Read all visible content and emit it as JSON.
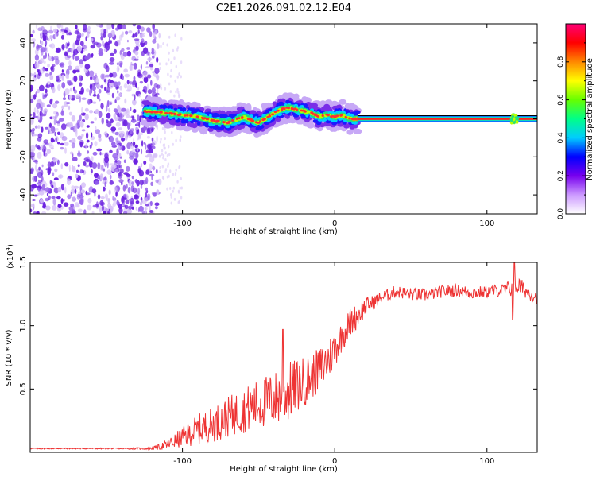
{
  "title": "C2E1.2026.091.02.12.E04",
  "chart_data": [
    {
      "type": "heatmap",
      "name": "spectrogram",
      "xlabel": "Height of straight line (km)",
      "ylabel": "Frequency (Hz)",
      "xlim": [
        -200,
        133
      ],
      "ylim": [
        -50,
        50
      ],
      "x_ticks": [
        -100,
        0,
        100
      ],
      "x_tick_labels": [
        "-100",
        "0",
        "100"
      ],
      "y_ticks": [
        -40,
        -20,
        0,
        20,
        40
      ],
      "y_tick_labels": [
        "-40",
        "-20",
        "0",
        "20",
        "40"
      ],
      "noise_region_x": [
        -200,
        -115
      ],
      "signal_trace": {
        "x": [
          -125,
          -110,
          -100,
          -90,
          -80,
          -70,
          -60,
          -50,
          -40,
          -35,
          -30,
          -25,
          -20,
          -15,
          -10,
          -5,
          0,
          5,
          10,
          15,
          133
        ],
        "freq": [
          4,
          3,
          2,
          1,
          -1,
          -2,
          1,
          -2,
          3,
          5,
          6,
          5,
          4,
          3,
          1,
          2,
          1,
          2,
          0,
          0,
          0
        ]
      },
      "line_x": [
        -200,
        133
      ],
      "line_freq": 0
    },
    {
      "type": "line",
      "name": "snr",
      "xlabel": "Height of straight line (km)",
      "ylabel": "SNR (10 * v/v)",
      "multiplier_label": "(x10",
      "multiplier_exp": "4",
      "xlim": [
        -200,
        133
      ],
      "ylim": [
        0,
        1.5
      ],
      "x_ticks": [
        -100,
        0,
        100
      ],
      "x_tick_labels": [
        "-100",
        "0",
        "100"
      ],
      "y_ticks": [
        0.5,
        1.0,
        1.5
      ],
      "y_tick_labels": [
        "0.5",
        "1.0",
        "1.5"
      ],
      "color": "#ee3333",
      "x": [
        -200,
        -180,
        -160,
        -140,
        -120,
        -110,
        -100,
        -90,
        -80,
        -70,
        -60,
        -50,
        -40,
        -35,
        -30,
        -25,
        -20,
        -15,
        -10,
        -5,
        0,
        5,
        10,
        15,
        20,
        25,
        30,
        40,
        50,
        60,
        70,
        80,
        90,
        100,
        110,
        118,
        120,
        125,
        133
      ],
      "baseline": [
        0.03,
        0.03,
        0.03,
        0.03,
        0.03,
        0.06,
        0.12,
        0.18,
        0.22,
        0.28,
        0.33,
        0.38,
        0.42,
        0.45,
        0.48,
        0.52,
        0.56,
        0.6,
        0.65,
        0.72,
        0.82,
        0.92,
        1.02,
        1.08,
        1.15,
        1.18,
        1.22,
        1.27,
        1.25,
        1.24,
        1.27,
        1.28,
        1.26,
        1.27,
        1.28,
        1.3,
        1.32,
        1.28,
        1.22
      ],
      "noise": [
        0.005,
        0.005,
        0.005,
        0.005,
        0.01,
        0.04,
        0.08,
        0.12,
        0.14,
        0.16,
        0.18,
        0.2,
        0.22,
        0.24,
        0.24,
        0.22,
        0.2,
        0.18,
        0.18,
        0.18,
        0.15,
        0.12,
        0.12,
        0.1,
        0.08,
        0.06,
        0.05,
        0.05,
        0.05,
        0.05,
        0.05,
        0.05,
        0.05,
        0.05,
        0.05,
        0.08,
        0.08,
        0.06,
        0.05
      ],
      "peak_1": {
        "x": -34,
        "y": 0.97
      },
      "peak_2": {
        "x": 118,
        "y": 1.5
      },
      "dip_1": {
        "x": 118,
        "y": 1.05
      }
    },
    {
      "type": "colorbar",
      "name": "colorbar",
      "label": "Normalized spectral amplitude",
      "range": [
        0,
        1
      ],
      "ticks": [
        0.0,
        0.2,
        0.4,
        0.6,
        0.8
      ],
      "tick_labels": [
        "0.0",
        "0.2",
        "0.4",
        "0.6",
        "0.8"
      ],
      "stops": [
        "#ffffff",
        "#cc99ff",
        "#7700ee",
        "#0000ff",
        "#00ccff",
        "#00ff88",
        "#66ff00",
        "#ffff00",
        "#ff8800",
        "#ff0000",
        "#ff0077"
      ]
    }
  ]
}
